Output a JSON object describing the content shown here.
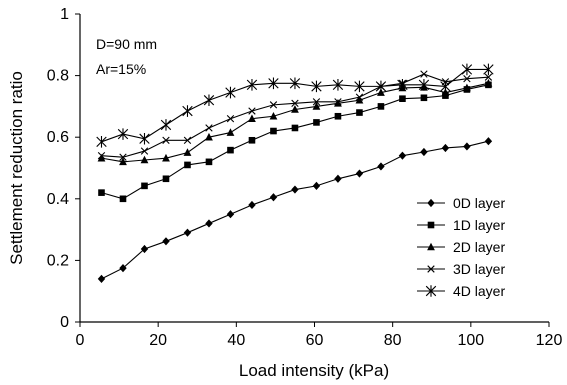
{
  "chart_data": {
    "type": "line",
    "xlabel": "Load intensity (kPa)",
    "ylabel": "Settlement reduction ratio",
    "xlim": [
      0,
      120
    ],
    "ylim": [
      0,
      1
    ],
    "xticks": [
      0,
      20,
      40,
      60,
      80,
      100,
      120
    ],
    "yticks": [
      0,
      0.2,
      0.4,
      0.6,
      0.8,
      1
    ],
    "ytick_labels": [
      "0",
      "0.2",
      "0.4",
      "0.6",
      "0.8",
      "1"
    ],
    "grid": false,
    "legend_position": "bottom-right",
    "annotations": [
      "D=90 mm",
      "Ar=15%"
    ],
    "x": [
      5.5,
      11,
      16.5,
      22,
      27.5,
      33,
      38.5,
      44,
      49.5,
      55,
      60.5,
      66,
      71.5,
      77,
      82.5,
      88,
      93.5,
      99,
      104.5
    ],
    "series": [
      {
        "name": "0D layer",
        "marker": "diamond",
        "values": [
          0.14,
          0.175,
          0.237,
          0.262,
          0.29,
          0.32,
          0.35,
          0.38,
          0.405,
          0.43,
          0.442,
          0.465,
          0.482,
          0.505,
          0.54,
          0.552,
          0.565,
          0.57,
          0.587
        ]
      },
      {
        "name": "1D layer",
        "marker": "square",
        "values": [
          0.42,
          0.4,
          0.442,
          0.465,
          0.51,
          0.52,
          0.558,
          0.59,
          0.62,
          0.63,
          0.648,
          0.668,
          0.68,
          0.7,
          0.725,
          0.728,
          0.735,
          0.755,
          0.77
        ]
      },
      {
        "name": "2D layer",
        "marker": "triangle",
        "values": [
          0.532,
          0.52,
          0.526,
          0.532,
          0.55,
          0.6,
          0.615,
          0.66,
          0.668,
          0.69,
          0.7,
          0.71,
          0.72,
          0.745,
          0.76,
          0.762,
          0.745,
          0.76,
          0.775
        ]
      },
      {
        "name": "3D layer",
        "marker": "x",
        "values": [
          0.54,
          0.535,
          0.555,
          0.59,
          0.59,
          0.63,
          0.66,
          0.685,
          0.705,
          0.71,
          0.715,
          0.715,
          0.73,
          0.765,
          0.775,
          0.805,
          0.78,
          0.79,
          0.795
        ]
      },
      {
        "name": "4D layer",
        "marker": "asterisk",
        "values": [
          0.585,
          0.61,
          0.595,
          0.64,
          0.685,
          0.72,
          0.745,
          0.77,
          0.775,
          0.775,
          0.765,
          0.77,
          0.765,
          0.765,
          0.77,
          0.77,
          0.765,
          0.82,
          0.82
        ]
      }
    ]
  }
}
